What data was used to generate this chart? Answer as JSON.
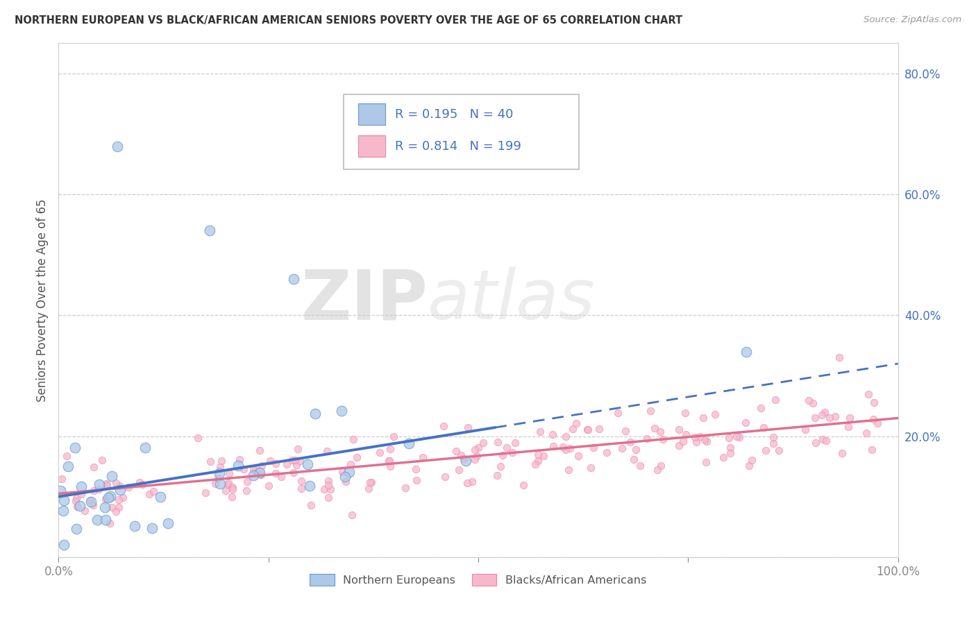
{
  "title": "NORTHERN EUROPEAN VS BLACK/AFRICAN AMERICAN SENIORS POVERTY OVER THE AGE OF 65 CORRELATION CHART",
  "source": "Source: ZipAtlas.com",
  "ylabel": "Seniors Poverty Over the Age of 65",
  "xlim": [
    0.0,
    1.0
  ],
  "ylim": [
    0.0,
    0.85
  ],
  "xticklabels": [
    "0.0%",
    "100.0%"
  ],
  "yticks": [
    0.0,
    0.2,
    0.4,
    0.6,
    0.8
  ],
  "yticklabels": [
    "",
    "20.0%",
    "40.0%",
    "60.0%",
    "80.0%"
  ],
  "blue_color": "#adc8e8",
  "blue_edge_color": "#6699cc",
  "blue_line_color": "#4472C4",
  "pink_color": "#f7b8cb",
  "pink_edge_color": "#e888a8",
  "pink_line_color": "#e07090",
  "blue_R": 0.195,
  "blue_N": 40,
  "pink_R": 0.814,
  "pink_N": 199,
  "legend_label_blue": "Northern Europeans",
  "legend_label_pink": "Blacks/African Americans",
  "watermark_zip": "ZIP",
  "watermark_atlas": "atlas",
  "background_color": "#ffffff",
  "grid_color": "#cccccc",
  "title_color": "#333333",
  "legend_text_color": "#4472C4",
  "blue_line_solid_end": 0.52,
  "blue_line_intercept": 0.1,
  "blue_line_slope": 0.22,
  "pink_line_intercept": 0.105,
  "pink_line_slope": 0.125
}
